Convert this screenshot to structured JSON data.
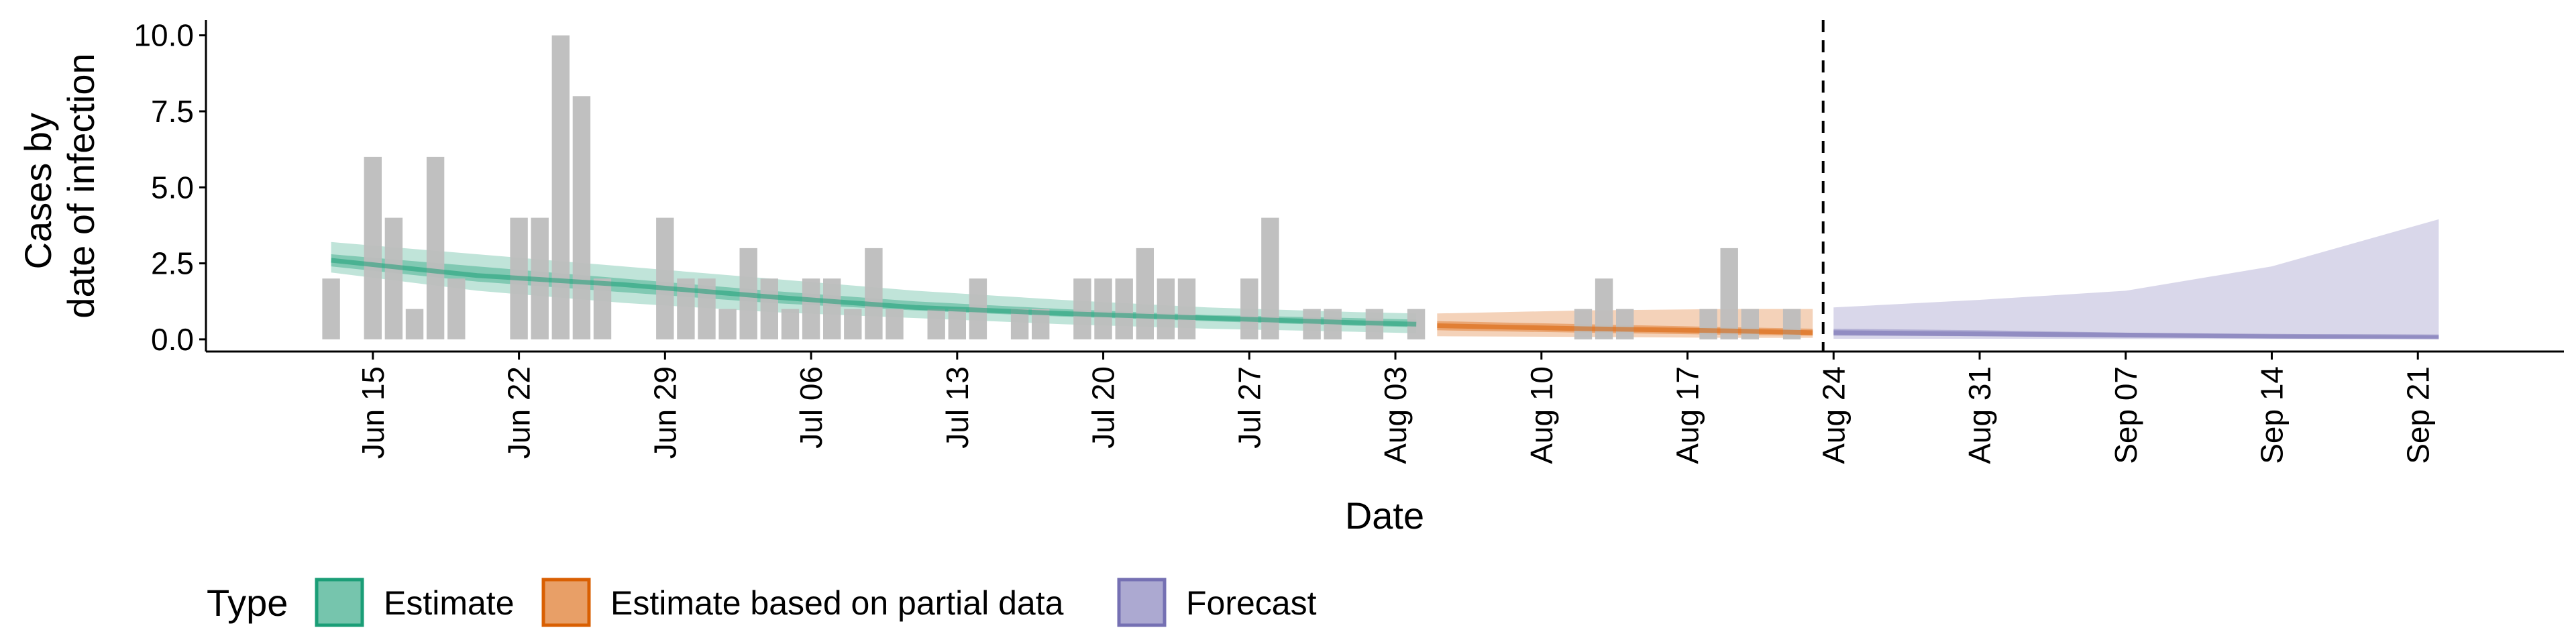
{
  "chart_data": {
    "type": "bar",
    "xlabel": "Date",
    "ylabel": [
      "Cases by",
      "date of infection"
    ],
    "ylim": [
      -0.4,
      10.5
    ],
    "xlim": [
      "2020-06-07",
      "2020-09-28"
    ],
    "y_ticks": [
      0,
      2.5,
      5,
      7.5,
      10
    ],
    "y_tick_labels": [
      "0.0",
      "2.5",
      "5.0",
      "7.5",
      "10.0"
    ],
    "x_ticks": [
      "2020-06-15",
      "2020-06-22",
      "2020-06-29",
      "2020-07-06",
      "2020-07-13",
      "2020-07-20",
      "2020-07-27",
      "2020-08-03",
      "2020-08-10",
      "2020-08-17",
      "2020-08-24",
      "2020-08-31",
      "2020-09-07",
      "2020-09-14",
      "2020-09-21"
    ],
    "x_tick_labels": [
      "Jun 15",
      "Jun 22",
      "Jun 29",
      "Jul 06",
      "Jul 13",
      "Jul 20",
      "Jul 27",
      "Aug 03",
      "Aug 10",
      "Aug 17",
      "Aug 24",
      "Aug 31",
      "Sep 07",
      "Sep 14",
      "Sep 21"
    ],
    "grid": false,
    "forecast_date": "2020-08-23",
    "observed_cases": {
      "color": "#bdbdbd",
      "x": [
        "2020-06-13",
        "2020-06-15",
        "2020-06-16",
        "2020-06-17",
        "2020-06-18",
        "2020-06-19",
        "2020-06-22",
        "2020-06-23",
        "2020-06-24",
        "2020-06-25",
        "2020-06-26",
        "2020-06-29",
        "2020-06-30",
        "2020-07-01",
        "2020-07-02",
        "2020-07-03",
        "2020-07-04",
        "2020-07-05",
        "2020-07-06",
        "2020-07-07",
        "2020-07-08",
        "2020-07-09",
        "2020-07-10",
        "2020-07-12",
        "2020-07-13",
        "2020-07-14",
        "2020-07-16",
        "2020-07-17",
        "2020-07-19",
        "2020-07-20",
        "2020-07-21",
        "2020-07-22",
        "2020-07-23",
        "2020-07-24",
        "2020-07-27",
        "2020-07-28",
        "2020-07-30",
        "2020-07-31",
        "2020-08-02",
        "2020-08-04",
        "2020-08-12",
        "2020-08-13",
        "2020-08-14",
        "2020-08-18",
        "2020-08-19",
        "2020-08-20",
        "2020-08-22"
      ],
      "values": [
        2,
        6,
        4,
        1,
        6,
        2,
        4,
        4,
        10,
        8,
        2,
        4,
        2,
        2,
        1,
        3,
        2,
        1,
        2,
        2,
        1,
        3,
        1,
        1,
        1,
        2,
        1,
        1,
        2,
        2,
        2,
        3,
        2,
        2,
        2,
        4,
        1,
        1,
        1,
        1,
        1,
        2,
        1,
        1,
        3,
        1,
        1
      ]
    },
    "series": [
      {
        "name": "Estimate",
        "color": "#1b9e77",
        "x": [
          "2020-06-13",
          "2020-06-20",
          "2020-06-27",
          "2020-07-04",
          "2020-07-11",
          "2020-07-18",
          "2020-07-25",
          "2020-08-01",
          "2020-08-04"
        ],
        "outer_lower": [
          2.2,
          1.6,
          1.2,
          0.9,
          0.7,
          0.5,
          0.35,
          0.25,
          0.2
        ],
        "inner_lower": [
          2.4,
          1.9,
          1.55,
          1.2,
          0.95,
          0.75,
          0.6,
          0.45,
          0.4
        ],
        "median": [
          2.6,
          2.1,
          1.8,
          1.4,
          1.05,
          0.85,
          0.7,
          0.55,
          0.5
        ],
        "inner_upper": [
          2.8,
          2.4,
          2.0,
          1.6,
          1.25,
          1.0,
          0.8,
          0.7,
          0.65
        ],
        "outer_upper": [
          3.2,
          2.8,
          2.4,
          2.0,
          1.6,
          1.3,
          1.05,
          0.9,
          0.85
        ]
      },
      {
        "name": "Estimate based on partial data",
        "color": "#d95f02",
        "x": [
          "2020-08-05",
          "2020-08-12",
          "2020-08-19",
          "2020-08-23"
        ],
        "outer_lower": [
          0.1,
          0.08,
          0.05,
          0.05
        ],
        "inner_lower": [
          0.3,
          0.22,
          0.15,
          0.12
        ],
        "median": [
          0.45,
          0.35,
          0.28,
          0.22
        ],
        "inner_upper": [
          0.6,
          0.5,
          0.4,
          0.35
        ],
        "outer_upper": [
          0.85,
          0.95,
          1.0,
          1.0
        ]
      },
      {
        "name": "Forecast",
        "color": "#7570b3",
        "x": [
          "2020-08-24",
          "2020-08-31",
          "2020-09-07",
          "2020-09-14",
          "2020-09-22"
        ],
        "outer_lower": [
          0.02,
          0.02,
          0.01,
          0.01,
          0.01
        ],
        "inner_lower": [
          0.12,
          0.1,
          0.06,
          0.04,
          0.03
        ],
        "median": [
          0.22,
          0.18,
          0.14,
          0.1,
          0.08
        ],
        "inner_upper": [
          0.35,
          0.3,
          0.22,
          0.16,
          0.12
        ],
        "outer_upper": [
          1.05,
          1.3,
          1.6,
          2.4,
          3.95
        ]
      }
    ],
    "legend": {
      "title": "Type",
      "position": "bottom-left",
      "items": [
        {
          "label": "Estimate",
          "color": "#1b9e77"
        },
        {
          "label": "Estimate based on partial data",
          "color": "#d95f02"
        },
        {
          "label": "Forecast",
          "color": "#7570b3"
        }
      ]
    }
  }
}
